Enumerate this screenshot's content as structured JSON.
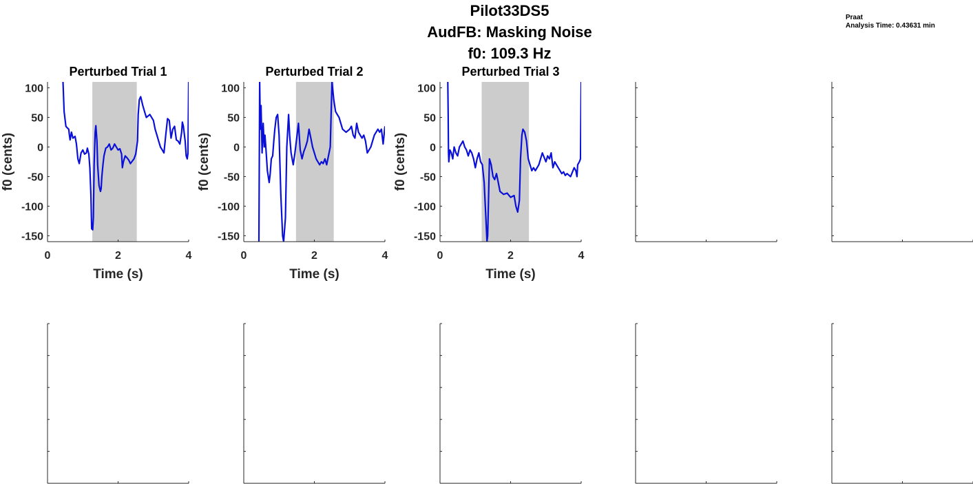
{
  "figure": {
    "title_lines": [
      "Pilot33DS5",
      "AudFB: Masking Noise",
      "f0: 109.3 Hz"
    ],
    "info": {
      "software": "Praat",
      "analysis_time": "Analysis Time: 0.43631 min"
    },
    "colors": {
      "line": "#0a10d8",
      "shade": "#cccccc",
      "axis": "#262626"
    }
  },
  "chart_data": [
    {
      "type": "line",
      "title": "Perturbed Trial 1",
      "xlabel": "Time (s)",
      "ylabel": "f0 (cents)",
      "xlim": [
        0,
        4
      ],
      "ylim": [
        -160,
        110
      ],
      "xticks": [
        0,
        2,
        4
      ],
      "yticks": [
        100,
        50,
        0,
        -50,
        -100,
        -150
      ],
      "shaded_region": [
        1.27,
        2.53
      ],
      "series": [
        {
          "x": [
            0.44,
            0.47,
            0.52,
            0.55,
            0.6,
            0.62,
            0.64,
            0.68,
            0.72,
            0.78,
            0.82,
            0.86,
            0.9,
            0.95,
            1.0,
            1.05,
            1.1,
            1.13,
            1.17,
            1.2,
            1.23,
            1.25,
            1.28,
            1.3,
            1.32,
            1.35,
            1.37,
            1.4,
            1.42,
            1.46,
            1.5,
            1.52,
            1.54,
            1.57,
            1.6,
            1.65,
            1.7,
            1.75,
            1.8,
            1.85,
            1.9,
            1.95,
            2.0,
            2.05,
            2.1,
            2.12,
            2.15,
            2.2,
            2.25,
            2.3,
            2.35,
            2.4,
            2.45,
            2.5,
            2.55,
            2.57,
            2.6,
            2.64,
            2.7,
            2.75,
            2.8,
            2.9,
            3.0,
            3.05,
            3.1,
            3.15,
            3.2,
            3.25,
            3.3,
            3.35,
            3.4,
            3.45,
            3.5,
            3.55,
            3.6,
            3.65,
            3.7,
            3.75,
            3.8,
            3.82,
            3.85,
            3.9,
            3.93,
            3.96,
            3.98,
            4.0
          ],
          "y": [
            110,
            60,
            35,
            33,
            30,
            20,
            12,
            25,
            15,
            18,
            5,
            -20,
            -28,
            -10,
            -5,
            -12,
            -10,
            -2,
            -12,
            -35,
            -80,
            -138,
            -140,
            -120,
            -30,
            25,
            36,
            10,
            -30,
            -65,
            -75,
            -70,
            -50,
            -30,
            -15,
            -2,
            0,
            5,
            -5,
            -2,
            5,
            0,
            -5,
            -3,
            -12,
            -35,
            -25,
            -15,
            -18,
            -22,
            -28,
            -24,
            -20,
            -12,
            10,
            55,
            80,
            85,
            70,
            60,
            50,
            55,
            45,
            30,
            20,
            10,
            0,
            -5,
            -10,
            20,
            48,
            45,
            15,
            30,
            35,
            12,
            10,
            5,
            25,
            42,
            35,
            10,
            -15,
            -20,
            -10,
            110
          ]
        }
      ]
    },
    {
      "type": "line",
      "title": "Perturbed Trial 2",
      "xlabel": "Time (s)",
      "ylabel": "f0 (cents)",
      "xlim": [
        0,
        4
      ],
      "ylim": [
        -160,
        110
      ],
      "xticks": [
        0,
        2,
        4
      ],
      "yticks": [
        100,
        50,
        0,
        -50,
        -100,
        -150
      ],
      "shaded_region": [
        1.48,
        2.55
      ],
      "series": [
        {
          "x": [
            0.43,
            0.45,
            0.47,
            0.49,
            0.52,
            0.55,
            0.58,
            0.6,
            0.63,
            0.67,
            0.72,
            0.75,
            0.78,
            0.82,
            0.85,
            0.88,
            0.92,
            0.96,
            1.0,
            1.05,
            1.1,
            1.13,
            1.18,
            1.22,
            1.27,
            1.3,
            1.34,
            1.4,
            1.45,
            1.5,
            1.55,
            1.6,
            1.65,
            1.7,
            1.75,
            1.8,
            1.85,
            1.9,
            1.95,
            2.0,
            2.05,
            2.1,
            2.15,
            2.2,
            2.25,
            2.3,
            2.35,
            2.4,
            2.45,
            2.5,
            2.55,
            2.6,
            2.65,
            2.7,
            2.75,
            2.8,
            2.9,
            3.0,
            3.05,
            3.1,
            3.15,
            3.2,
            3.25,
            3.3,
            3.35,
            3.4,
            3.45,
            3.5,
            3.6,
            3.7,
            3.8,
            3.85,
            3.9,
            3.95,
            4.0
          ],
          "y": [
            -160,
            110,
            30,
            70,
            -10,
            40,
            0,
            20,
            -5,
            -40,
            -60,
            -45,
            -20,
            -15,
            10,
            30,
            50,
            55,
            20,
            -80,
            -150,
            -160,
            -120,
            0,
            55,
            20,
            -10,
            -30,
            -10,
            15,
            40,
            -5,
            -20,
            -8,
            0,
            10,
            30,
            15,
            0,
            -10,
            -20,
            -25,
            -30,
            -25,
            -28,
            -20,
            -30,
            -15,
            0,
            110,
            80,
            60,
            55,
            50,
            40,
            30,
            25,
            30,
            35,
            20,
            15,
            40,
            25,
            20,
            15,
            20,
            10,
            -10,
            0,
            20,
            30,
            25,
            30,
            5,
            35
          ]
        }
      ]
    },
    {
      "type": "line",
      "title": "Perturbed Trial 3",
      "xlabel": "Time (s)",
      "ylabel": "f0 (cents)",
      "xlim": [
        0,
        4
      ],
      "ylim": [
        -160,
        110
      ],
      "xticks": [
        0,
        2,
        4
      ],
      "yticks": [
        100,
        50,
        0,
        -50,
        -100,
        -150
      ],
      "shaded_region": [
        1.18,
        2.52
      ],
      "series": [
        {
          "x": [
            0.22,
            0.23,
            0.24,
            0.25,
            0.28,
            0.32,
            0.36,
            0.4,
            0.45,
            0.5,
            0.55,
            0.6,
            0.65,
            0.7,
            0.75,
            0.8,
            0.85,
            0.9,
            0.95,
            1.0,
            1.05,
            1.1,
            1.15,
            1.2,
            1.25,
            1.3,
            1.33,
            1.35,
            1.4,
            1.45,
            1.5,
            1.55,
            1.6,
            1.65,
            1.7,
            1.8,
            1.9,
            2.0,
            2.1,
            2.15,
            2.2,
            2.25,
            2.28,
            2.32,
            2.35,
            2.4,
            2.45,
            2.5,
            2.55,
            2.6,
            2.65,
            2.7,
            2.8,
            2.9,
            3.0,
            3.05,
            3.1,
            3.15,
            3.2,
            3.25,
            3.3,
            3.4,
            3.45,
            3.5,
            3.55,
            3.6,
            3.7,
            3.8,
            3.85,
            3.88,
            3.9,
            3.95,
            3.98,
            4.0
          ],
          "y": [
            110,
            60,
            -10,
            -25,
            -5,
            -10,
            -20,
            0,
            -10,
            -15,
            0,
            5,
            10,
            0,
            -5,
            -15,
            -5,
            -10,
            -20,
            -35,
            -20,
            -10,
            -25,
            -30,
            -60,
            -120,
            -160,
            -150,
            -20,
            -30,
            -50,
            -55,
            -45,
            -60,
            -75,
            -80,
            -78,
            -85,
            -82,
            -100,
            -110,
            -90,
            -20,
            20,
            30,
            25,
            10,
            -20,
            -30,
            -40,
            -35,
            -40,
            -30,
            -10,
            -25,
            -15,
            -20,
            -10,
            -35,
            -25,
            -30,
            -40,
            -45,
            -42,
            -48,
            -45,
            -50,
            -35,
            -40,
            -50,
            -30,
            -25,
            -20,
            110
          ]
        }
      ]
    },
    {
      "type": "line",
      "title": "",
      "xlim": [
        0,
        4
      ],
      "ylim": [
        -160,
        110
      ],
      "xticks": [
        0,
        2,
        4
      ],
      "yticks": [
        100,
        50,
        0,
        -50,
        -100,
        -150
      ],
      "tick_labels_visible": false,
      "series": []
    },
    {
      "type": "line",
      "title": "",
      "xlim": [
        0,
        4
      ],
      "ylim": [
        -160,
        110
      ],
      "xticks": [
        0,
        2,
        4
      ],
      "yticks": [
        100,
        50,
        0,
        -50,
        -100,
        -150
      ],
      "tick_labels_visible": false,
      "series": []
    },
    {
      "type": "line",
      "title": "",
      "xlim": [
        0,
        1
      ],
      "ylim": [
        0,
        1
      ],
      "xticks": [
        0,
        0.5,
        1
      ],
      "yticks": [
        0,
        0.2,
        0.4,
        0.6,
        0.8,
        1
      ],
      "tick_labels_visible": false,
      "series": []
    },
    {
      "type": "line",
      "title": "",
      "xlim": [
        0,
        1
      ],
      "ylim": [
        0,
        1
      ],
      "xticks": [
        0,
        0.5,
        1
      ],
      "yticks": [
        0,
        0.2,
        0.4,
        0.6,
        0.8,
        1
      ],
      "tick_labels_visible": false,
      "series": []
    },
    {
      "type": "line",
      "title": "",
      "xlim": [
        0,
        1
      ],
      "ylim": [
        0,
        1
      ],
      "xticks": [
        0,
        0.5,
        1
      ],
      "yticks": [
        0,
        0.2,
        0.4,
        0.6,
        0.8,
        1
      ],
      "tick_labels_visible": false,
      "series": []
    },
    {
      "type": "line",
      "title": "",
      "xlim": [
        0,
        1
      ],
      "ylim": [
        0,
        1
      ],
      "xticks": [
        0,
        0.5,
        1
      ],
      "yticks": [
        0,
        0.2,
        0.4,
        0.6,
        0.8,
        1
      ],
      "tick_labels_visible": false,
      "series": []
    },
    {
      "type": "line",
      "title": "",
      "xlim": [
        0,
        1
      ],
      "ylim": [
        0,
        1
      ],
      "xticks": [
        0,
        0.5,
        1
      ],
      "yticks": [
        0,
        0.2,
        0.4,
        0.6,
        0.8,
        1
      ],
      "tick_labels_visible": false,
      "series": []
    }
  ]
}
